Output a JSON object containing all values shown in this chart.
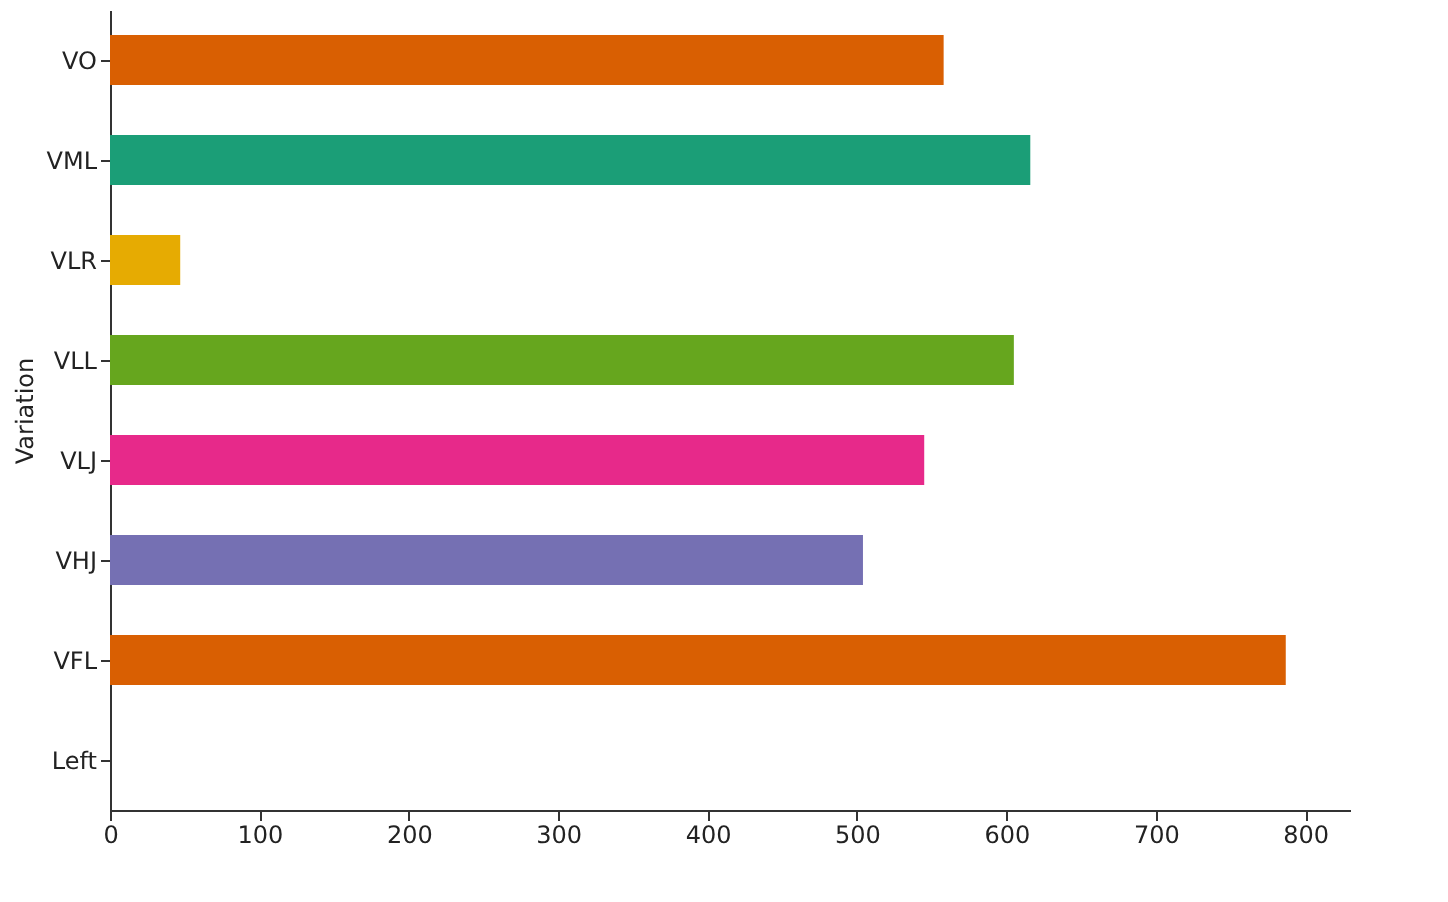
{
  "chart_data": {
    "type": "bar",
    "orientation": "horizontal",
    "ylabel": "Variation",
    "categories": [
      "VO",
      "VML",
      "VLR",
      "VLL",
      "VLJ",
      "VHJ",
      "VFL",
      "Left"
    ],
    "values": [
      558,
      616,
      47,
      605,
      545,
      504,
      787,
      0
    ],
    "colors": [
      "#d95f02",
      "#1b9e77",
      "#e6ab02",
      "#66a61e",
      "#e7298a",
      "#7570b3",
      "#d95f02",
      "#1b9e77"
    ],
    "xlim": [
      0,
      830
    ],
    "xticks": [
      0,
      100,
      200,
      300,
      400,
      500,
      600,
      700,
      800
    ],
    "grid": false
  }
}
